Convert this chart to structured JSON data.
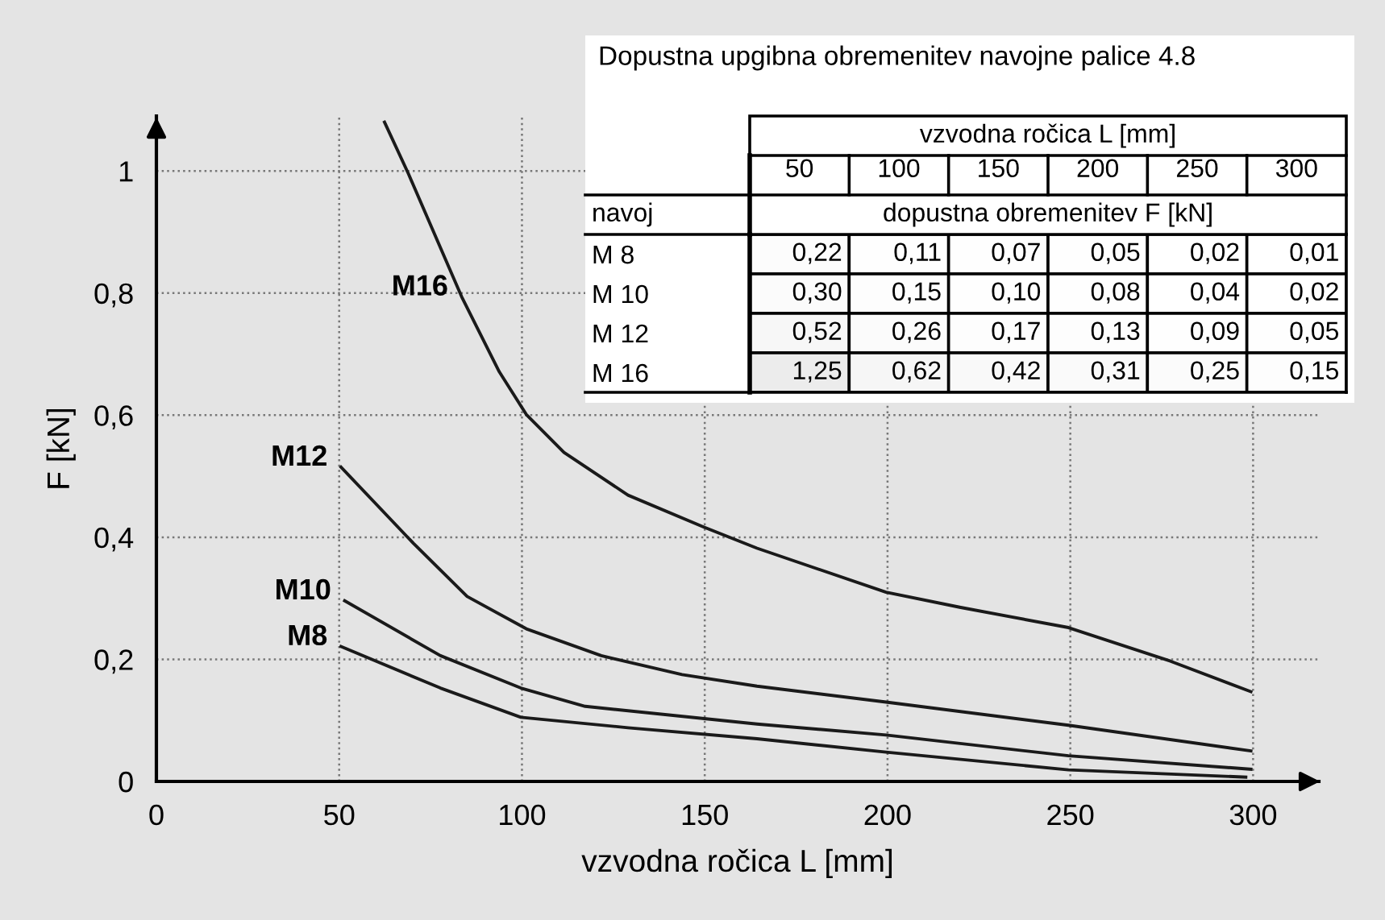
{
  "chart_data": [
    {
      "type": "line",
      "xlabel": "vzvodna ročica L [mm]",
      "ylabel": "F [kN]",
      "xlim": [
        0,
        318
      ],
      "ylim": [
        0,
        1.09
      ],
      "xticks": [
        0,
        50,
        100,
        150,
        200,
        250,
        300
      ],
      "yticks": [
        0,
        {
          "value": 0.2,
          "label": "0,2"
        },
        {
          "value": 0.4,
          "label": "0,4"
        },
        {
          "value": 0.6,
          "label": "0,6"
        },
        {
          "value": 0.8,
          "label": "0,8"
        },
        1
      ],
      "grid": true,
      "legend": false,
      "marker": "none",
      "line_style": "solid",
      "series": [
        {
          "name": "M16",
          "color": "#1a1a1a",
          "x": [
            62.4,
            68.9,
            83.5,
            93.8,
            101.2,
            111.5,
            129,
            149.6,
            164.3,
            199.6,
            220,
            249.5,
            277.4,
            299.4
          ],
          "values": [
            1.08,
            0.996,
            0.794,
            0.671,
            0.601,
            0.539,
            0.469,
            0.417,
            0.382,
            0.31,
            0.285,
            0.252,
            0.197,
            0.147
          ]
        },
        {
          "name": "M12",
          "color": "#1a1a1a",
          "x": [
            50.5,
            70.3,
            85,
            101.2,
            121.7,
            143.8,
            164.3,
            199.6,
            249.5,
            299.4
          ],
          "values": [
            0.515,
            0.39,
            0.303,
            0.25,
            0.206,
            0.175,
            0.156,
            0.13,
            0.092,
            0.05
          ]
        },
        {
          "name": "M10",
          "color": "#1a1a1a",
          "x": [
            51.5,
            77.7,
            99.7,
            117.3,
            164.3,
            199.6,
            249.5,
            299.4
          ],
          "values": [
            0.296,
            0.206,
            0.153,
            0.123,
            0.094,
            0.076,
            0.042,
            0.02
          ]
        },
        {
          "name": "M8",
          "color": "#1a1a1a",
          "x": [
            50.5,
            77.7,
            99.7,
            129,
            164.3,
            199.6,
            249.5,
            298
          ],
          "values": [
            0.221,
            0.153,
            0.105,
            0.088,
            0.07,
            0.048,
            0.019,
            0.007
          ]
        }
      ]
    },
    {
      "type": "heatmap",
      "title": "Dopustna upgibna obremenitev navojne palice 4.8",
      "xlabel": "vzvodna ročica L [mm]",
      "ylabel": "navoj",
      "annotations": [
        "dopustna obremenitev F [kN]"
      ],
      "categories": [
        "50",
        "100",
        "150",
        "200",
        "250",
        "300"
      ],
      "y_categories": [
        "M 8",
        "M 10",
        "M 12",
        "M 16"
      ],
      "cells": [
        [
          0.22,
          0.11,
          0.07,
          0.05,
          0.02,
          0.01
        ],
        [
          0.3,
          0.15,
          0.1,
          0.08,
          0.04,
          0.02
        ],
        [
          0.52,
          0.26,
          0.17,
          0.13,
          0.09,
          0.05
        ],
        [
          1.25,
          0.62,
          0.42,
          0.31,
          0.25,
          0.15
        ]
      ],
      "cell_labels": [
        [
          "0,22",
          "0,11",
          "0,07",
          "0,05",
          "0,02",
          "0,01"
        ],
        [
          "0,30",
          "0,15",
          "0,10",
          "0,08",
          "0,04",
          "0,02"
        ],
        [
          "0,52",
          "0,26",
          "0,17",
          "0,13",
          "0,09",
          "0,05"
        ],
        [
          "1,25",
          "0,62",
          "0,42",
          "0,31",
          "0,25",
          "0,15"
        ]
      ]
    }
  ]
}
